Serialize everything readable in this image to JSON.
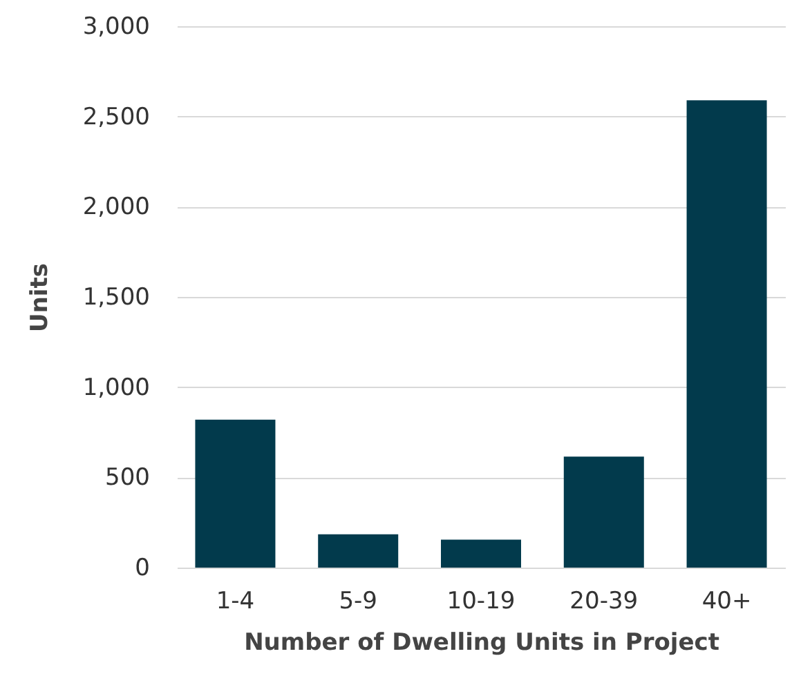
{
  "chart_data": {
    "type": "bar",
    "xlabel": "Number of Dwelling Units in Project",
    "ylabel": "Units",
    "categories": [
      "1-4",
      "5-9",
      "10-19",
      "20-39",
      "40+"
    ],
    "values": [
      820,
      185,
      155,
      615,
      2590
    ],
    "color": "#023a4c",
    "ylim": [
      0,
      3000
    ],
    "yticks": [
      0,
      500,
      {
        "value": 1000,
        "label": "1,000"
      },
      {
        "value": 1500,
        "label": "1,500"
      },
      {
        "value": 2000,
        "label": "2,000"
      },
      {
        "value": 2500,
        "label": "2,500"
      },
      {
        "value": 3000,
        "label": "3,000"
      }
    ],
    "grid": "y"
  }
}
